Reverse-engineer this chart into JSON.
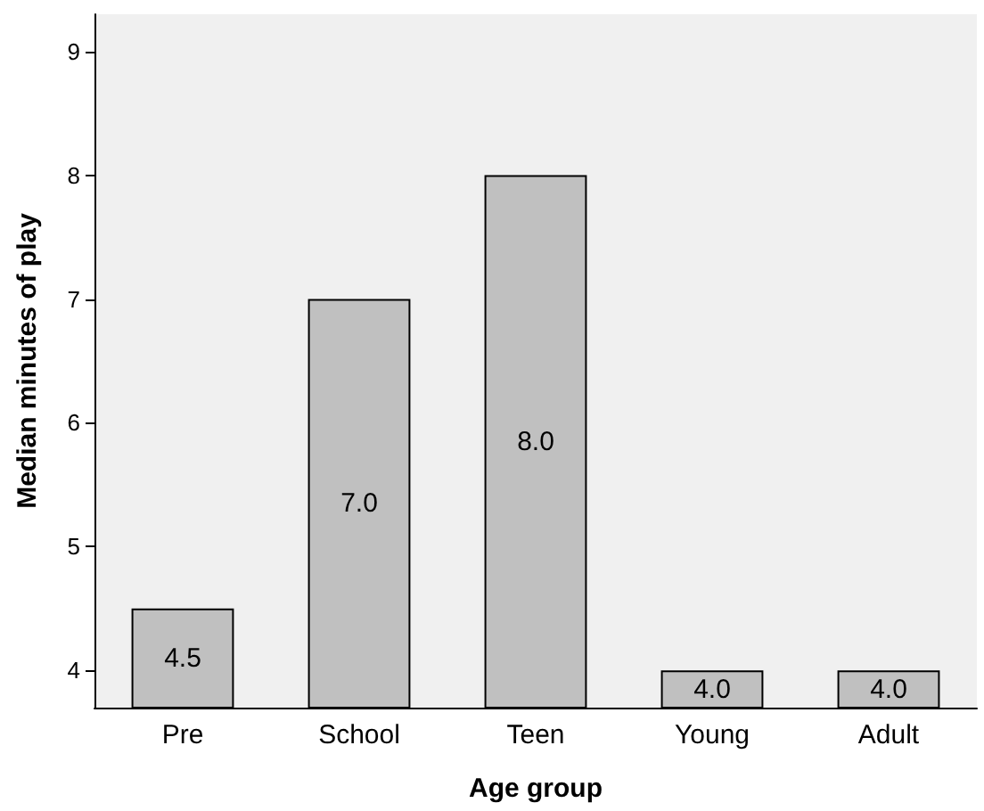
{
  "chart_data": {
    "type": "bar",
    "xlabel": "Age group",
    "ylabel": "Median minutes of play",
    "categories": [
      "Pre",
      "School",
      "Teen",
      "Young",
      "Adult"
    ],
    "values": [
      4.5,
      7.0,
      8.0,
      4.0,
      4.0
    ],
    "color": "#c0c0c0",
    "value_labels": [
      "4.5",
      "7.0",
      "8.0",
      "4.0",
      "4.0"
    ],
    "ylim": [
      3.7,
      9.3
    ],
    "yticks": [
      4,
      5,
      6,
      7,
      8,
      9
    ],
    "grid": false
  }
}
